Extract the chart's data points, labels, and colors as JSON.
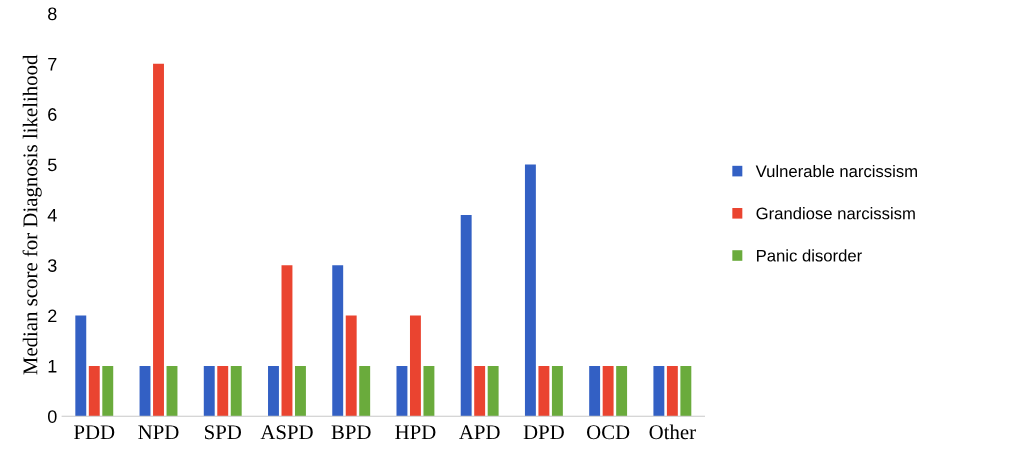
{
  "chart_data": {
    "type": "bar",
    "ylabel": "Median score for Diagnosis likelihood",
    "categories": [
      "PDD",
      "NPD",
      "SPD",
      "ASPD",
      "BPD",
      "HPD",
      "APD",
      "DPD",
      "OCD",
      "Other"
    ],
    "series": [
      {
        "name": "Vulnerable narcissism",
        "color": "#3360c4",
        "values": [
          2,
          1,
          1,
          1,
          3,
          1,
          4,
          5,
          1,
          1
        ]
      },
      {
        "name": "Grandiose narcissism",
        "color": "#ea4430",
        "values": [
          1,
          7,
          1,
          3,
          2,
          2,
          1,
          1,
          1,
          1
        ]
      },
      {
        "name": "Panic disorder",
        "color": "#6aab3c",
        "values": [
          1,
          1,
          1,
          1,
          1,
          1,
          1,
          1,
          1,
          1
        ]
      }
    ],
    "ylim": [
      0,
      8
    ],
    "yticks": [
      0,
      1,
      2,
      3,
      4,
      5,
      6,
      7,
      8
    ],
    "grid": false,
    "legend": "right"
  }
}
